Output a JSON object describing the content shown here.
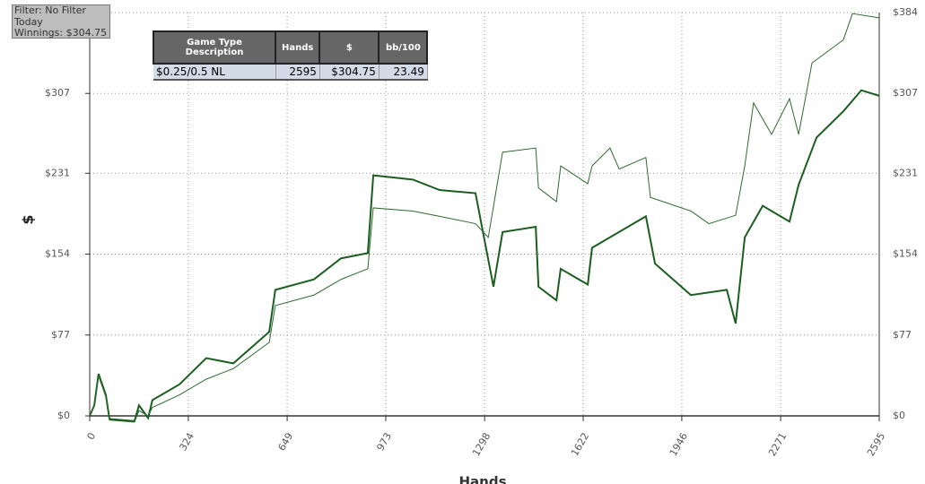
{
  "chart_data": {
    "type": "line",
    "annotations": [
      "Filter: No Filter",
      "Today",
      "Winnings: $304.75"
    ],
    "table": {
      "columns": [
        "Game Type Description",
        "Hands",
        "$",
        "bb/100"
      ],
      "rows": [
        [
          "$0.25/0.5 NL",
          "2595",
          "$304.75",
          "23.49"
        ]
      ]
    },
    "xlabel": "Hands",
    "ylabel": "$",
    "xlim": [
      0,
      2595
    ],
    "xticks": [
      0,
      324,
      649,
      973,
      1298,
      1622,
      1946,
      2271,
      2595
    ],
    "ylim": [
      0,
      384
    ],
    "yticks": [
      {
        "value": 0,
        "label": "$0"
      },
      {
        "value": 77,
        "label": "$77"
      },
      {
        "value": 154,
        "label": "$154"
      },
      {
        "value": 231,
        "label": "$231"
      },
      {
        "value": 307,
        "label": "$307"
      },
      {
        "value": 384,
        "label": "$384"
      }
    ],
    "grid": true,
    "series": [
      {
        "color": "#1b5e20",
        "width": 2,
        "x": [
          0,
          15,
          29,
          53,
          65,
          147,
          162,
          192,
          206,
          295,
          383,
          472,
          590,
          610,
          737,
          826,
          914,
          932,
          1062,
          1150,
          1268,
          1327,
          1357,
          1466,
          1475,
          1534,
          1548,
          1637,
          1651,
          1828,
          1858,
          1976,
          2094,
          2123,
          2153,
          2212,
          2300,
          2330,
          2389,
          2477,
          2536,
          2595
        ],
        "values": [
          0,
          10,
          40,
          20,
          -3,
          -5,
          10,
          -2,
          15,
          30,
          55,
          50,
          80,
          120,
          130,
          150,
          155,
          229,
          225,
          215,
          212,
          123,
          175,
          180,
          123,
          110,
          140,
          125,
          160,
          190,
          145,
          115,
          120,
          88,
          170,
          200,
          185,
          220,
          265,
          290,
          310,
          304.75
        ]
      },
      {
        "color": "#2e6b2e",
        "width": 1,
        "x": [
          0,
          15,
          29,
          53,
          65,
          147,
          162,
          192,
          206,
          295,
          383,
          472,
          590,
          610,
          737,
          826,
          914,
          932,
          1062,
          1150,
          1268,
          1310,
          1357,
          1466,
          1475,
          1534,
          1548,
          1637,
          1651,
          1710,
          1740,
          1828,
          1843,
          1976,
          2035,
          2123,
          2153,
          2182,
          2241,
          2300,
          2330,
          2374,
          2477,
          2507,
          2595
        ],
        "values": [
          0,
          10,
          38,
          18,
          -4,
          -6,
          5,
          0,
          8,
          20,
          35,
          45,
          70,
          105,
          115,
          130,
          140,
          198,
          195,
          190,
          183,
          170,
          251,
          255,
          217,
          204,
          238,
          221,
          238,
          255,
          235,
          246,
          208,
          195,
          183,
          191,
          238,
          298,
          268,
          302,
          268,
          336,
          358,
          383,
          379
        ]
      }
    ]
  }
}
